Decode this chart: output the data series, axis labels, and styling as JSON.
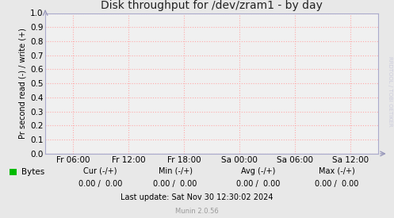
{
  "title": "Disk throughput for /dev/zram1 - by day",
  "ylabel": "Pr second read (-) / write (+)",
  "ylim": [
    0.0,
    1.0
  ],
  "yticks": [
    0.0,
    0.1,
    0.2,
    0.3,
    0.4,
    0.5,
    0.6,
    0.7,
    0.8,
    0.9,
    1.0
  ],
  "xtick_labels": [
    "Fr 06:00",
    "Fr 12:00",
    "Fr 18:00",
    "Sa 00:00",
    "Sa 06:00",
    "Sa 12:00"
  ],
  "bg_color": "#e8e8e8",
  "plot_bg_color": "#f0f0f0",
  "grid_color": "#ffaaaa",
  "title_fontsize": 10,
  "axis_label_fontsize": 7,
  "tick_fontsize": 7.5,
  "legend_label": "Bytes",
  "legend_color": "#00bb00",
  "cur_label": "Cur (-/+)",
  "min_label": "Min (-/+)",
  "avg_label": "Avg (-/+)",
  "max_label": "Max (-/+)",
  "cur_val": "0.00 /  0.00",
  "min_val": "0.00 /  0.00",
  "avg_val": "0.00 /  0.00",
  "max_val": "0.00 /  0.00",
  "last_update": "Last update: Sat Nov 30 12:30:02 2024",
  "munin_version": "Munin 2.0.56",
  "watermark": "RRDTOOL / TOBI OETIKER",
  "border_color": "#aaaacc",
  "zero_line_color": "#777799"
}
